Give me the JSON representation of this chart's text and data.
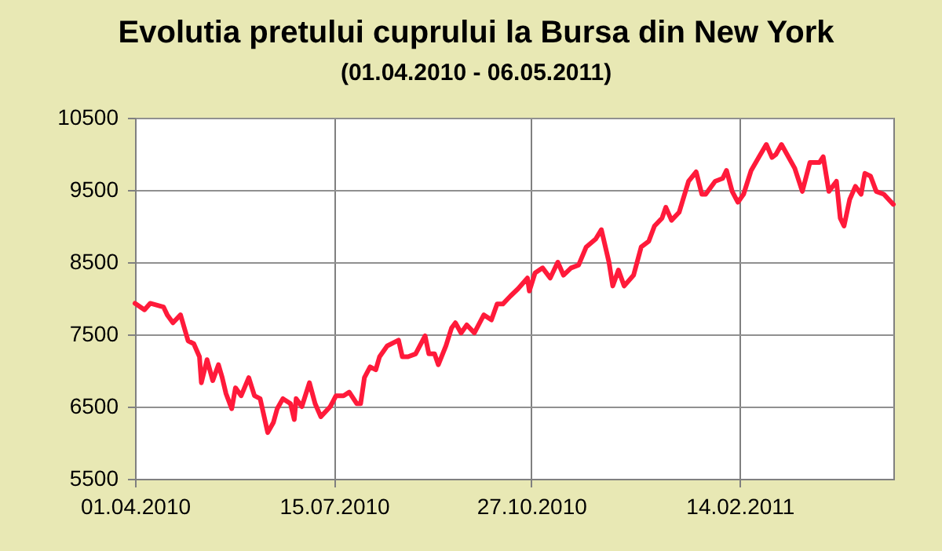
{
  "chart_data": {
    "type": "line",
    "title": "Evolutia pretului cuprului la Bursa din New York",
    "subtitle": "(01.04.2010 - 06.05.2011)",
    "x": [
      "2010-04-01",
      "2010-04-06",
      "2010-04-09",
      "2010-04-16",
      "2010-04-18",
      "2010-04-21",
      "2010-04-25",
      "2010-04-29",
      "2010-05-02",
      "2010-05-05",
      "2010-05-06",
      "2010-05-09",
      "2010-05-12",
      "2010-05-15",
      "2010-05-17",
      "2010-05-19",
      "2010-05-22",
      "2010-05-24",
      "2010-05-27",
      "2010-05-31",
      "2010-06-03",
      "2010-06-06",
      "2010-06-10",
      "2010-06-13",
      "2010-06-15",
      "2010-06-18",
      "2010-06-22",
      "2010-06-24",
      "2010-06-25",
      "2010-06-28",
      "2010-07-02",
      "2010-07-05",
      "2010-07-08",
      "2010-07-13",
      "2010-07-16",
      "2010-07-20",
      "2010-07-23",
      "2010-07-27",
      "2010-07-29",
      "2010-07-31",
      "2010-08-03",
      "2010-08-06",
      "2010-08-08",
      "2010-08-12",
      "2010-08-18",
      "2010-08-20",
      "2010-08-23",
      "2010-08-27",
      "2010-09-01",
      "2010-09-03",
      "2010-09-06",
      "2010-09-08",
      "2010-09-12",
      "2010-09-15",
      "2010-09-17",
      "2010-09-20",
      "2010-09-23",
      "2010-09-27",
      "2010-10-02",
      "2010-10-06",
      "2010-10-09",
      "2010-10-12",
      "2010-10-16",
      "2010-10-20",
      "2010-10-25",
      "2010-10-26",
      "2010-10-29",
      "2010-11-02",
      "2010-11-06",
      "2010-11-10",
      "2010-11-13",
      "2010-11-17",
      "2010-11-21",
      "2010-11-25",
      "2010-11-30",
      "2010-12-03",
      "2010-12-07",
      "2010-12-09",
      "2010-12-12",
      "2010-12-15",
      "2010-12-20",
      "2010-12-24",
      "2010-12-28",
      "2010-12-31",
      "2011-01-04",
      "2011-01-06",
      "2011-01-09",
      "2011-01-13",
      "2011-01-18",
      "2011-01-22",
      "2011-01-25",
      "2011-01-27",
      "2011-02-01",
      "2011-02-05",
      "2011-02-07",
      "2011-02-10",
      "2011-02-13",
      "2011-02-16",
      "2011-02-20",
      "2011-02-24",
      "2011-02-28",
      "2011-03-03",
      "2011-03-05",
      "2011-03-08",
      "2011-03-11",
      "2011-03-15",
      "2011-03-19",
      "2011-03-23",
      "2011-03-28",
      "2011-03-30",
      "2011-04-02",
      "2011-04-06",
      "2011-04-08",
      "2011-04-10",
      "2011-04-13",
      "2011-04-16",
      "2011-04-19",
      "2011-04-21",
      "2011-04-24",
      "2011-04-27",
      "2011-05-01",
      "2011-05-06"
    ],
    "series": [
      {
        "color": "#ff1a3a",
        "values": [
          7930,
          7840,
          7930,
          7880,
          7770,
          7660,
          7770,
          7410,
          7370,
          7190,
          6830,
          7150,
          6860,
          7080,
          6900,
          6680,
          6470,
          6760,
          6650,
          6900,
          6650,
          6610,
          6140,
          6280,
          6470,
          6610,
          6540,
          6320,
          6610,
          6500,
          6830,
          6540,
          6360,
          6500,
          6650,
          6650,
          6700,
          6540,
          6540,
          6900,
          7050,
          7010,
          7190,
          7340,
          7420,
          7190,
          7190,
          7230,
          7480,
          7230,
          7230,
          7080,
          7340,
          7590,
          7660,
          7520,
          7630,
          7520,
          7770,
          7700,
          7920,
          7920,
          8030,
          8130,
          8280,
          8100,
          8350,
          8420,
          8280,
          8500,
          8320,
          8420,
          8460,
          8710,
          8820,
          8950,
          8500,
          8170,
          8390,
          8170,
          8320,
          8710,
          8790,
          9000,
          9110,
          9260,
          9080,
          9190,
          9620,
          9750,
          9440,
          9440,
          9620,
          9660,
          9770,
          9480,
          9330,
          9440,
          9770,
          9950,
          10130,
          9950,
          9990,
          10130,
          9990,
          9800,
          9480,
          9880,
          9880,
          9960,
          9480,
          9620,
          9110,
          9000,
          9370,
          9550,
          9440,
          9730,
          9690,
          9480,
          9440,
          9300
        ]
      }
    ],
    "xlim": [
      "2010-04-01",
      "2011-05-06"
    ],
    "xticks": [
      {
        "value": "2010-04-01",
        "label": "01.04.2010"
      },
      {
        "value": "2010-07-15",
        "label": "15.07.2010"
      },
      {
        "value": "2010-10-27",
        "label": "27.10.2010"
      },
      {
        "value": "2011-02-14",
        "label": "14.02.2011"
      }
    ],
    "ylim": [
      5500,
      10500
    ],
    "yticks": [
      5500,
      6500,
      7500,
      8500,
      9500,
      10500
    ],
    "grid": true,
    "marker": "none",
    "line_style": "solid"
  }
}
